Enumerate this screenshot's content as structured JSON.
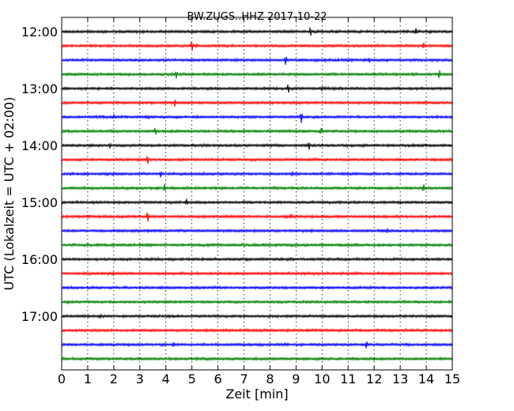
{
  "chart_data": {
    "type": "line",
    "title": "BW.ZUGS..HHZ 2017-10-22",
    "xlabel": "Zeit  [min]",
    "ylabel": "UTC (Lokalzeit = UTC + 02:00)",
    "xlim": [
      0,
      15
    ],
    "x_ticks": [
      "0",
      "1",
      "2",
      "3",
      "4",
      "5",
      "6",
      "7",
      "8",
      "9",
      "10",
      "11",
      "12",
      "13",
      "14",
      "15"
    ],
    "y_tick_labels": [
      "12:00",
      "13:00",
      "14:00",
      "15:00",
      "16:00",
      "17:00"
    ],
    "grid": "vertical dotted",
    "trace_colors": [
      "#000000",
      "#ff0000",
      "#0000ff",
      "#008000"
    ],
    "series": [
      {
        "start": "12:00",
        "events": [
          {
            "x": 9.55,
            "amp": 6
          },
          {
            "x": 13.6,
            "amp": 4
          }
        ]
      },
      {
        "start": "12:15",
        "events": [
          {
            "x": 5.0,
            "amp": 7
          },
          {
            "x": 13.9,
            "amp": 4
          }
        ]
      },
      {
        "start": "12:30",
        "events": [
          {
            "x": 8.6,
            "amp": 6
          },
          {
            "x": 11.8,
            "amp": 3
          }
        ]
      },
      {
        "start": "12:45",
        "events": [
          {
            "x": 4.4,
            "amp": 5
          },
          {
            "x": 14.5,
            "amp": 6
          }
        ]
      },
      {
        "start": "13:00",
        "events": [
          {
            "x": 8.7,
            "amp": 6
          },
          {
            "x": 10.0,
            "amp": 3
          }
        ]
      },
      {
        "start": "13:15",
        "events": [
          {
            "x": 4.35,
            "amp": 5
          }
        ]
      },
      {
        "start": "13:30",
        "events": [
          {
            "x": 9.2,
            "amp": 7
          },
          {
            "x": 2.0,
            "amp": 3
          }
        ]
      },
      {
        "start": "13:45",
        "events": [
          {
            "x": 3.6,
            "amp": 5
          },
          {
            "x": 9.95,
            "amp": 4
          }
        ]
      },
      {
        "start": "14:00",
        "events": [
          {
            "x": 9.5,
            "amp": 5
          },
          {
            "x": 1.85,
            "amp": 3
          }
        ]
      },
      {
        "start": "14:15",
        "events": [
          {
            "x": 3.3,
            "amp": 6
          }
        ]
      },
      {
        "start": "14:30",
        "events": [
          {
            "x": 3.8,
            "amp": 4
          },
          {
            "x": 8.85,
            "amp": 3
          }
        ]
      },
      {
        "start": "14:45",
        "events": [
          {
            "x": 3.95,
            "amp": 5
          },
          {
            "x": 13.9,
            "amp": 5
          }
        ]
      },
      {
        "start": "15:00",
        "events": [
          {
            "x": 4.8,
            "amp": 4
          }
        ]
      },
      {
        "start": "15:15",
        "events": [
          {
            "x": 3.3,
            "amp": 7
          },
          {
            "x": 8.8,
            "amp": 3
          }
        ]
      },
      {
        "start": "15:30",
        "events": [
          {
            "x": 12.5,
            "amp": 3
          }
        ]
      },
      {
        "start": "15:45",
        "events": []
      },
      {
        "start": "16:00",
        "events": []
      },
      {
        "start": "16:15",
        "events": []
      },
      {
        "start": "16:30",
        "events": []
      },
      {
        "start": "16:45",
        "events": []
      },
      {
        "start": "17:00",
        "events": [
          {
            "x": 1.5,
            "amp": 2
          }
        ]
      },
      {
        "start": "17:15",
        "events": []
      },
      {
        "start": "17:30",
        "events": [
          {
            "x": 11.7,
            "amp": 5
          },
          {
            "x": 4.3,
            "amp": 3
          }
        ]
      },
      {
        "start": "17:45",
        "events": [
          {
            "x": 5.2,
            "amp": 2
          }
        ]
      }
    ]
  }
}
